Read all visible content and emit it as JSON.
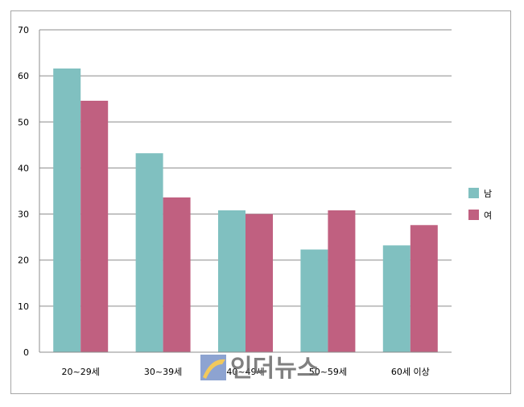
{
  "chart_data": {
    "type": "bar",
    "title": "",
    "xlabel": "",
    "ylabel": "",
    "categories": [
      "20~29세",
      "30~39세",
      "40~49세",
      "50~59세",
      "60세 이상"
    ],
    "series": [
      {
        "name": "남",
        "color": "#80c0c0",
        "values": [
          61.6,
          43.2,
          30.8,
          22.3,
          23.2
        ]
      },
      {
        "name": "여",
        "color": "#c06080",
        "values": [
          54.6,
          33.6,
          30.0,
          30.8,
          27.6
        ]
      }
    ],
    "ylim": [
      0,
      70
    ],
    "yticks": [
      0,
      10,
      20,
      30,
      40,
      50,
      60,
      70
    ],
    "grid": true,
    "legend": "right"
  },
  "watermark": {
    "text": "인더뉴스",
    "logo": "inthenews-logo-icon"
  }
}
